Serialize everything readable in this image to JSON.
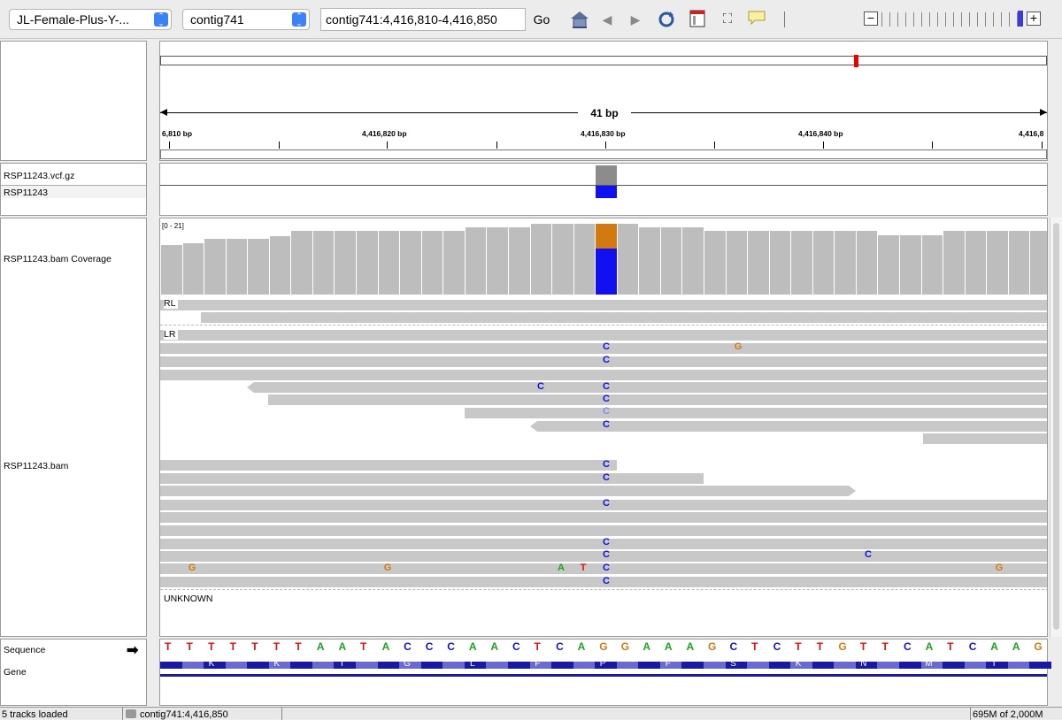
{
  "toolbar": {
    "genome": "JL-Female-Plus-Y-...",
    "chromosome": "contig741",
    "locus": "contig741:4,416,810-4,416,850",
    "go": "Go"
  },
  "ruler": {
    "span": "41 bp",
    "ticks": [
      {
        "label": "6,810 bp"
      },
      {
        "label": "4,416,820 bp"
      },
      {
        "label": "4,416,830 bp"
      },
      {
        "label": "4,416,840 bp"
      },
      {
        "label": "4,416,8"
      }
    ]
  },
  "tracks": {
    "vcf": "RSP11243.vcf.gz",
    "sample": "RSP11243",
    "coverage": "RSP11243.bam Coverage",
    "coverage_range": "[0 - 21]",
    "bam": "RSP11243.bam",
    "group_rl": "RL",
    "group_lr": "LR",
    "group_unknown": "UNKNOWN",
    "sequence": "Sequence",
    "gene": "Gene"
  },
  "sequence": [
    "T",
    "T",
    "T",
    "T",
    "T",
    "T",
    "T",
    "A",
    "A",
    "T",
    "A",
    "C",
    "C",
    "C",
    "A",
    "A",
    "C",
    "T",
    "C",
    "A",
    "G",
    "G",
    "A",
    "A",
    "A",
    "G",
    "C",
    "T",
    "C",
    "T",
    "T",
    "G",
    "T",
    "T",
    "C",
    "A",
    "T",
    "C",
    "A",
    "A",
    "G"
  ],
  "aminoacids": [
    "K",
    "K",
    "I",
    "G",
    "L",
    "F",
    "P",
    "F",
    "S",
    "K",
    "N",
    "M",
    "I"
  ],
  "status": {
    "tracks_loaded": "5 tracks loaded",
    "position": "contig741:4,416,850",
    "memory": "695M of 2,000M"
  },
  "colors": {
    "A": "#1fa21f",
    "C": "#1010e0",
    "G": "#d27a10",
    "T": "#e01010",
    "coverage": "#bdbdbd",
    "read": "#c8c8c8"
  }
}
